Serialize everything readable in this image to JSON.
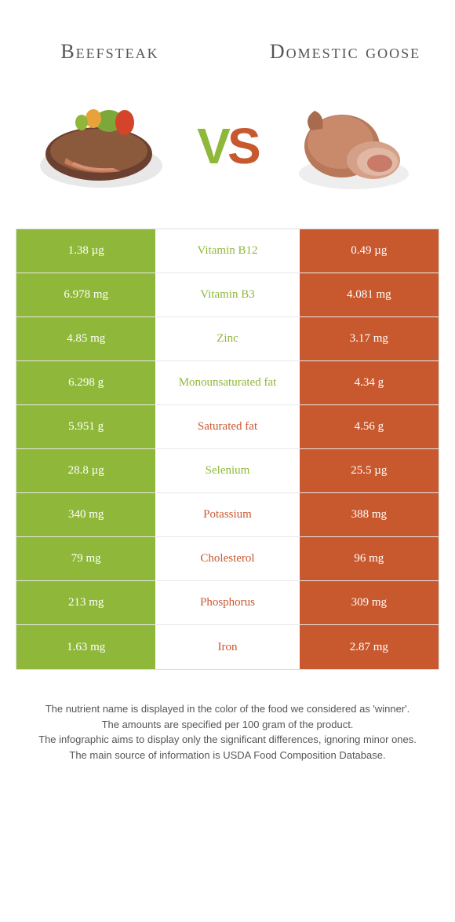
{
  "colors": {
    "green": "#8fb83a",
    "orange": "#c8592f",
    "text": "#555"
  },
  "foods": {
    "left": {
      "name": "Beefsteak",
      "color_key": "green"
    },
    "right": {
      "name": "Domestic goose",
      "color_key": "orange"
    }
  },
  "vs_label": {
    "v": "V",
    "s": "S"
  },
  "rows": [
    {
      "nutrient": "Vitamin B12",
      "left": "1.38 µg",
      "right": "0.49 µg",
      "winner": "left"
    },
    {
      "nutrient": "Vitamin B3",
      "left": "6.978 mg",
      "right": "4.081 mg",
      "winner": "left"
    },
    {
      "nutrient": "Zinc",
      "left": "4.85 mg",
      "right": "3.17 mg",
      "winner": "left"
    },
    {
      "nutrient": "Monounsaturated fat",
      "left": "6.298 g",
      "right": "4.34 g",
      "winner": "left"
    },
    {
      "nutrient": "Saturated fat",
      "left": "5.951 g",
      "right": "4.56 g",
      "winner": "right"
    },
    {
      "nutrient": "Selenium",
      "left": "28.8 µg",
      "right": "25.5 µg",
      "winner": "left"
    },
    {
      "nutrient": "Potassium",
      "left": "340 mg",
      "right": "388 mg",
      "winner": "right"
    },
    {
      "nutrient": "Cholesterol",
      "left": "79 mg",
      "right": "96 mg",
      "winner": "right"
    },
    {
      "nutrient": "Phosphorus",
      "left": "213 mg",
      "right": "309 mg",
      "winner": "right"
    },
    {
      "nutrient": "Iron",
      "left": "1.63 mg",
      "right": "2.87 mg",
      "winner": "right"
    }
  ],
  "footer_lines": [
    "The nutrient name is displayed in the color of the food we considered as 'winner'.",
    "The amounts are specified per 100 gram of the product.",
    "The infographic aims to display only the significant differences, ignoring minor ones.",
    "The main source of information is USDA Food Composition Database."
  ]
}
